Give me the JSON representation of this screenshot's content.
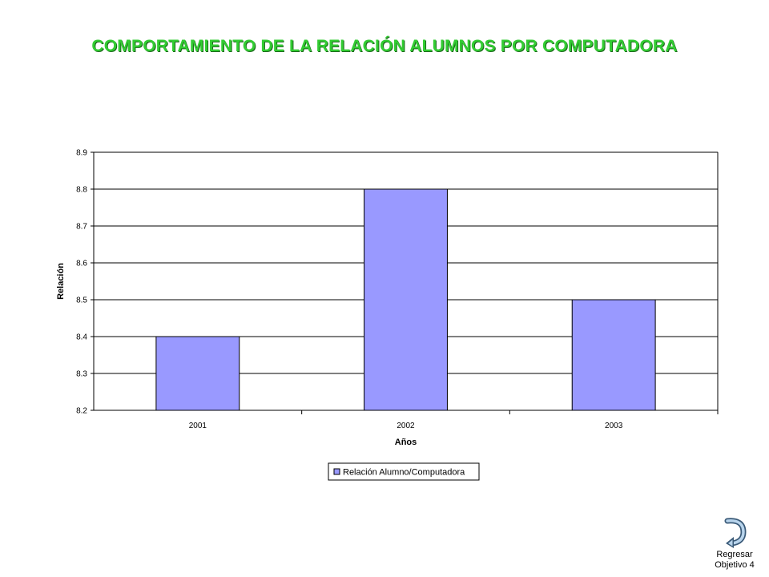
{
  "page": {
    "title": "COMPORTAMIENTO DE LA RELACIÓN ALUMNOS POR COMPUTADORA"
  },
  "chart_data": {
    "type": "bar",
    "categories": [
      "2001",
      "2002",
      "2003"
    ],
    "series": [
      {
        "name": "Relación Alumno/Computadora",
        "values": [
          8.4,
          8.8,
          8.5
        ],
        "color": "#9999ff"
      }
    ],
    "xlabel": "Años",
    "ylabel": "Relación",
    "ylim": [
      8.2,
      8.9
    ],
    "yticks": [
      "8.2",
      "8.3",
      "8.4",
      "8.5",
      "8.6",
      "8.7",
      "8.8",
      "8.9"
    ],
    "grid": true,
    "legend_position": "bottom"
  },
  "nav": {
    "icon": "return-arrow-icon",
    "line1": "Regresar",
    "line2": "Objetivo 4"
  }
}
